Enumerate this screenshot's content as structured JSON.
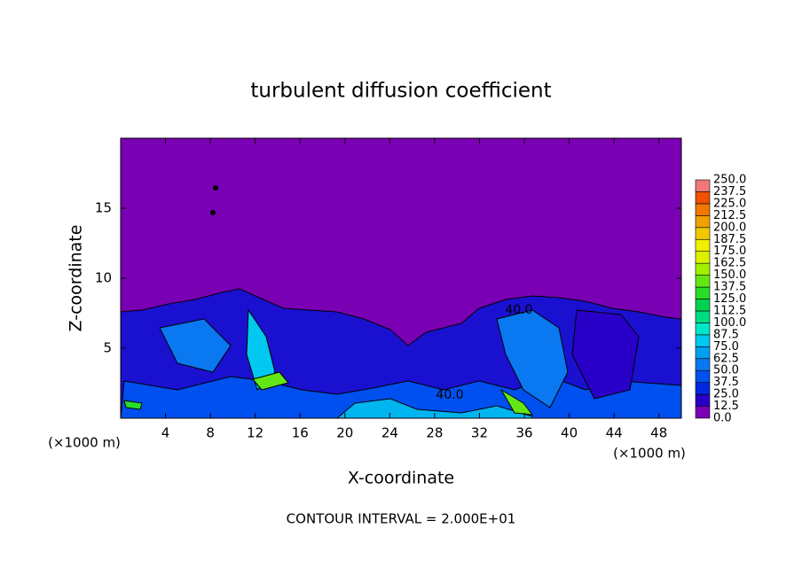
{
  "chart_data": {
    "type": "contour",
    "title": "turbulent diffusion coefficient",
    "x_label": "X-coordinate",
    "y_label": "Z-coordinate",
    "x_unit": "(×1000 m)",
    "y_unit": "(×1000 m)",
    "xlim": [
      0,
      50
    ],
    "xticks": [
      4,
      8,
      12,
      16,
      20,
      24,
      28,
      32,
      36,
      40,
      44,
      48
    ],
    "ylim": [
      0,
      20
    ],
    "yticks": [
      5,
      10,
      15
    ],
    "contour_labels": [
      "40.0",
      "40.0"
    ],
    "annotation": "CONTOUR INTERVAL = 2.000E+01",
    "levels": [
      {
        "value": 0,
        "label": "0.0"
      },
      12.5,
      {
        "value": 25,
        "label": "25.0"
      },
      37.5,
      {
        "value": 50,
        "label": "50.0"
      },
      62.5,
      {
        "value": 75,
        "label": "75.0"
      },
      87.5,
      {
        "value": 100,
        "label": "100.0"
      },
      112.5,
      {
        "value": 125,
        "label": "125.0"
      },
      137.5,
      {
        "value": 150,
        "label": "150.0"
      },
      162.5,
      {
        "value": 175,
        "label": "175.0"
      },
      187.5,
      {
        "value": 200,
        "label": "200.0"
      },
      212.5,
      {
        "value": 225,
        "label": "225.0"
      },
      237.5,
      {
        "value": 250,
        "label": "250.0"
      }
    ],
    "colors": [
      "#7a00b4",
      "#2800c8",
      "#0028e0",
      "#0050f0",
      "#0a78f0",
      "#00a0f0",
      "#00c8f0",
      "#00e6c8",
      "#00dc82",
      "#00d250",
      "#28dc28",
      "#64e614",
      "#a0f000",
      "#dcf000",
      "#f0f000",
      "#f0c800",
      "#f0a000",
      "#f07800",
      "#f05000",
      "#f07878"
    ]
  }
}
